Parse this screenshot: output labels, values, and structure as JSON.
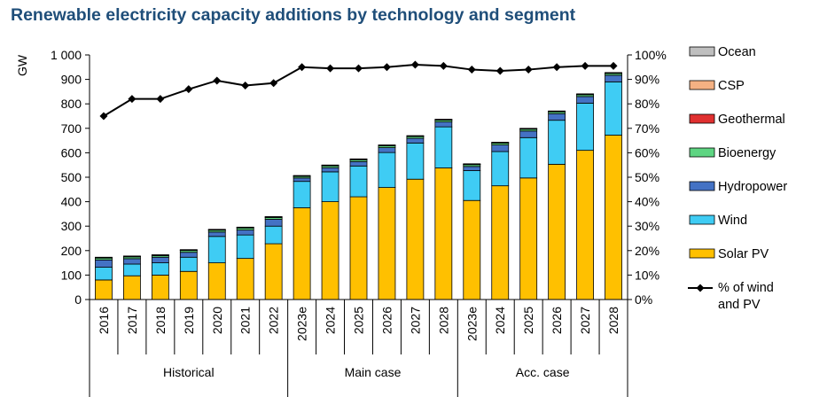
{
  "chart_data": {
    "type": "bar",
    "title": "Renewable electricity capacity additions by technology and segment",
    "ylabel": "GW",
    "ylim": [
      0,
      1000
    ],
    "y_ticks": [
      "0",
      "100",
      "200",
      "300",
      "400",
      "500",
      "600",
      "700",
      "800",
      "900",
      "1 000"
    ],
    "y2lim": [
      0,
      100
    ],
    "y2_ticks": [
      "0%",
      "10%",
      "20%",
      "30%",
      "40%",
      "50%",
      "60%",
      "70%",
      "80%",
      "90%",
      "100%"
    ],
    "stacked": true,
    "grid": false,
    "legend_position": "right",
    "categories": [
      "2016",
      "2017",
      "2018",
      "2019",
      "2020",
      "2021",
      "2022",
      "2023e",
      "2024",
      "2025",
      "2026",
      "2027",
      "2028",
      "2023e",
      "2024",
      "2025",
      "2026",
      "2027",
      "2028"
    ],
    "groups": [
      {
        "label": "Historical",
        "count": 7
      },
      {
        "label": "Main case",
        "count": 6
      },
      {
        "label": "Acc. case",
        "count": 6
      }
    ],
    "series": [
      {
        "name": "Solar PV",
        "color": "#ffc000",
        "values": [
          80,
          97,
          100,
          115,
          150,
          168,
          228,
          375,
          400,
          420,
          458,
          492,
          538,
          405,
          465,
          497,
          553,
          610,
          672
        ]
      },
      {
        "name": "Wind",
        "color": "#3fccf4",
        "values": [
          52,
          48,
          50,
          58,
          108,
          96,
          72,
          108,
          122,
          126,
          143,
          148,
          168,
          122,
          140,
          165,
          180,
          193,
          218
        ]
      },
      {
        "name": "Hydropower",
        "color": "#4472c4",
        "values": [
          30,
          22,
          23,
          20,
          18,
          20,
          28,
          14,
          17,
          18,
          20,
          19,
          20,
          17,
          27,
          27,
          27,
          27,
          27
        ]
      },
      {
        "name": "Bioenergy",
        "color": "#5ed582",
        "values": [
          8,
          8,
          7,
          8,
          8,
          9,
          8,
          7,
          8,
          8,
          8,
          8,
          8,
          8,
          8,
          8,
          8,
          8,
          8
        ]
      },
      {
        "name": "Geothermal",
        "color": "#e03030",
        "values": [
          1,
          1,
          1,
          1,
          1,
          1,
          1,
          1,
          1,
          1,
          1,
          1,
          1,
          1,
          1,
          1,
          1,
          1,
          1
        ]
      },
      {
        "name": "CSP",
        "color": "#f4b183",
        "values": [
          1,
          1,
          1,
          1,
          1,
          1,
          1,
          1,
          1,
          1,
          1,
          1,
          1,
          1,
          1,
          1,
          1,
          1,
          1
        ]
      },
      {
        "name": "Ocean",
        "color": "#bfbfbf",
        "values": [
          1,
          1,
          1,
          1,
          1,
          1,
          1,
          1,
          1,
          1,
          1,
          1,
          1,
          1,
          1,
          1,
          1,
          1,
          1
        ]
      }
    ],
    "line_series": {
      "name": "% of wind and PV",
      "axis": "right",
      "color": "#000000",
      "values": [
        75,
        82,
        82,
        86,
        89.5,
        87.5,
        88.5,
        95,
        94.5,
        94.5,
        95,
        96,
        95.5,
        94,
        93.5,
        94,
        95,
        95.5,
        95.5
      ]
    },
    "legend": [
      "Ocean",
      "CSP",
      "Geothermal",
      "Bioenergy",
      "Hydropower",
      "Wind",
      "Solar PV",
      "% of wind and PV"
    ]
  }
}
